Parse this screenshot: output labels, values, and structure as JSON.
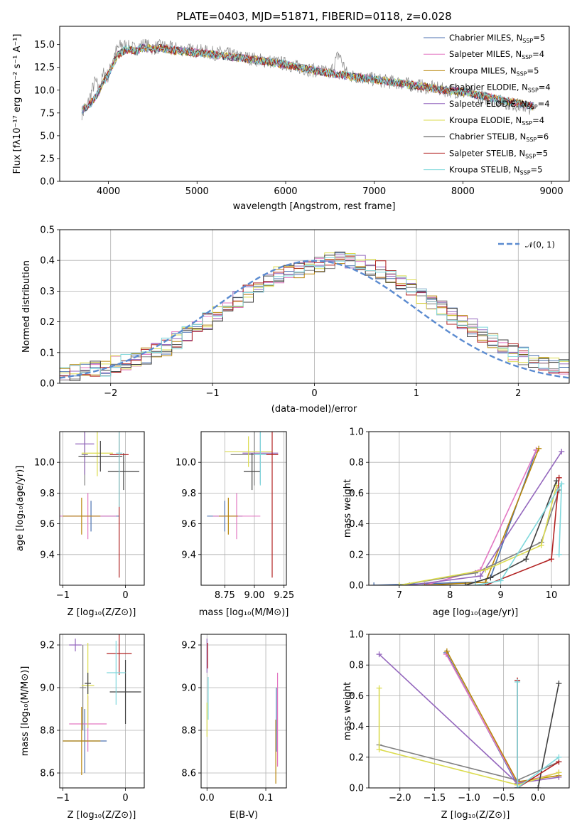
{
  "title": "PLATE=0403, MJD=51871, FIBERID=0118, z=0.028",
  "colors": {
    "Chabrier MILES": "#4c72b0",
    "Salpeter MILES": "#e377c2",
    "Kroupa MILES": "#b8860b",
    "Chabrier ELODIE": "#7f7f7f",
    "Salpeter ELODIE": "#9467bd",
    "Kroupa ELODIE": "#dbdb4d",
    "Chabrier STELIB": "#404040",
    "Salpeter STELIB": "#b22222",
    "Kroupa STELIB": "#7fd8dc"
  },
  "chart_data": [
    {
      "id": "spectrum",
      "type": "line",
      "xlabel": "wavelength [Angstrom, rest frame]",
      "ylabel": "Flux [fλ10⁻¹⁷ erg cm⁻² s⁻¹ A⁻¹]",
      "xlim": [
        3450,
        9200
      ],
      "ylim": [
        0,
        17
      ],
      "xticks": [
        "4000",
        "5000",
        "6000",
        "7000",
        "8000",
        "9000"
      ],
      "yticks": [
        "0.0",
        "2.5",
        "5.0",
        "7.5",
        "10.0",
        "12.5",
        "15.0"
      ],
      "grid": false,
      "legend_position": "top-right",
      "legend": [
        {
          "name": "Chabrier MILES",
          "nssp": "5"
        },
        {
          "name": "Salpeter MILES",
          "nssp": "4"
        },
        {
          "name": "Kroupa MILES",
          "nssp": "5"
        },
        {
          "name": "Chabrier ELODIE",
          "nssp": "4"
        },
        {
          "name": "Salpeter ELODIE",
          "nssp": "4"
        },
        {
          "name": "Kroupa ELODIE",
          "nssp": "4"
        },
        {
          "name": "Chabrier STELIB",
          "nssp": "6"
        },
        {
          "name": "Salpeter STELIB",
          "nssp": "5"
        },
        {
          "name": "Kroupa STELIB",
          "nssp": "5"
        }
      ],
      "observed": {
        "x": [
          3700,
          3750,
          3800,
          3850,
          3900,
          3950,
          4000,
          4050,
          4100,
          4150,
          4200,
          4300,
          4400,
          4500,
          4600,
          4700,
          4800,
          4900,
          5000,
          5100,
          5200,
          5300,
          5400,
          5500,
          5600,
          5700,
          5800,
          5900,
          6000,
          6100,
          6200,
          6300,
          6400,
          6500,
          6600,
          6700,
          6800,
          6900,
          7000,
          7100,
          7200,
          7300,
          7400,
          7500,
          7600,
          7700,
          7800,
          7900,
          8000,
          8100,
          8200,
          8300,
          8400,
          8500,
          8600,
          8700,
          8800
        ],
        "y": [
          7.5,
          8.0,
          9.5,
          11.0,
          10.0,
          12.0,
          11.5,
          13.5,
          14.5,
          15.0,
          14.8,
          14.5,
          15.0,
          14.6,
          14.8,
          14.6,
          14.5,
          14.4,
          14.3,
          14.2,
          14.0,
          14.1,
          13.8,
          13.6,
          13.5,
          13.3,
          13.2,
          13.0,
          12.9,
          12.6,
          12.4,
          12.2,
          12.1,
          11.8,
          14.0,
          11.6,
          11.5,
          11.3,
          11.2,
          11.0,
          10.9,
          10.8,
          10.6,
          10.5,
          10.3,
          10.2,
          10.0,
          9.9,
          9.7,
          9.6,
          9.3,
          9.0,
          8.8,
          8.6,
          8.4,
          8.2,
          8.0
        ]
      },
      "model": {
        "x": [
          3700,
          3800,
          3900,
          4000,
          4100,
          4200,
          4300,
          4400,
          4500,
          4600,
          4700,
          4800,
          4900,
          5000,
          5200,
          5400,
          5600,
          5800,
          6000,
          6200,
          6400,
          6600,
          6800,
          7000,
          7200,
          7400,
          7600,
          7800,
          8000,
          8200,
          8400,
          8600,
          8800
        ],
        "y": [
          7.8,
          8.5,
          10.0,
          11.8,
          13.8,
          14.5,
          14.3,
          14.7,
          14.5,
          14.6,
          14.4,
          14.3,
          14.2,
          14.1,
          13.9,
          13.6,
          13.4,
          13.1,
          12.8,
          12.4,
          12.0,
          11.7,
          11.4,
          11.2,
          10.9,
          10.6,
          10.3,
          10.0,
          9.8,
          9.4,
          9.0,
          8.6,
          8.2
        ]
      }
    },
    {
      "id": "residual-histogram",
      "type": "line",
      "xlabel": "(data-model)/error",
      "ylabel": "Normed distribution",
      "xlim": [
        -2.5,
        2.5
      ],
      "ylim": [
        0,
        0.5
      ],
      "xticks": [
        "−2",
        "−1",
        "0",
        "1",
        "2"
      ],
      "yticks": [
        "0.0",
        "0.1",
        "0.2",
        "0.3",
        "0.4",
        "0.5"
      ],
      "grid": true,
      "legend_position": "top-right",
      "legend": [
        {
          "name": "𝒩(0, 1)"
        }
      ],
      "bin_width": 0.1,
      "bin_start": -2.5,
      "histogram_values": [
        0.03,
        0.035,
        0.04,
        0.045,
        0.05,
        0.06,
        0.07,
        0.08,
        0.09,
        0.11,
        0.12,
        0.14,
        0.16,
        0.18,
        0.2,
        0.22,
        0.25,
        0.27,
        0.29,
        0.31,
        0.33,
        0.35,
        0.36,
        0.37,
        0.38,
        0.39,
        0.4,
        0.41,
        0.4,
        0.39,
        0.38,
        0.37,
        0.35,
        0.33,
        0.31,
        0.29,
        0.27,
        0.25,
        0.22,
        0.2,
        0.18,
        0.16,
        0.14,
        0.12,
        0.1,
        0.09,
        0.08,
        0.07,
        0.06,
        0.05
      ]
    },
    {
      "id": "age-vs-metallicity",
      "type": "scatter",
      "xlabel": "Z [log₁₀(Z/Z⊙)]",
      "ylabel": "age  [log₁₀(age/yr)]",
      "xlim": [
        -1.05,
        0.3
      ],
      "ylim": [
        9.2,
        10.2
      ],
      "xticks": [
        "−1",
        "0"
      ],
      "yticks": [
        "9.4",
        "9.6",
        "9.8",
        "10.0"
      ],
      "grid": true,
      "points": [
        {
          "series": "Chabrier MILES",
          "x": -0.55,
          "y": 9.65,
          "xerr": 0.45,
          "yerr": 0.1
        },
        {
          "series": "Salpeter MILES",
          "x": -0.6,
          "y": 9.65,
          "xerr": 0.45,
          "yerr": 0.15
        },
        {
          "series": "Kroupa MILES",
          "x": -0.7,
          "y": 9.65,
          "xerr": 0.3,
          "yerr": 0.12
        },
        {
          "series": "Chabrier ELODIE",
          "x": -0.65,
          "y": 10.05,
          "xerr": 0.05,
          "yerr": 0.2
        },
        {
          "series": "Salpeter ELODIE",
          "x": -0.65,
          "y": 10.12,
          "xerr": 0.15,
          "yerr": 0.2
        },
        {
          "series": "Kroupa ELODIE",
          "x": -0.45,
          "y": 10.06,
          "xerr": 0.25,
          "yerr": 0.15
        },
        {
          "series": "Chabrier STELIB",
          "x": -0.4,
          "y": 10.04,
          "xerr": 0.35,
          "yerr": 0.1
        },
        {
          "series": "Chabrier STELIB",
          "x": -0.03,
          "y": 9.94,
          "xerr": 0.25,
          "yerr": 0.12
        },
        {
          "series": "Salpeter STELIB",
          "x": -0.1,
          "y": 10.05,
          "xerr": 0.15,
          "yerr": 0.8
        },
        {
          "series": "Kroupa STELIB",
          "x": -0.1,
          "y": 10.06,
          "xerr": 0.05,
          "yerr": 0.35
        }
      ]
    },
    {
      "id": "age-vs-mass",
      "type": "scatter",
      "xlabel": "mass [log₁₀(M/M⊙)]",
      "ylabel": "",
      "xlim": [
        8.55,
        9.27
      ],
      "ylim": [
        9.2,
        10.2
      ],
      "xticks": [
        "8.75",
        "9.00",
        "9.25"
      ],
      "yticks": [
        "9.4",
        "9.6",
        "9.8",
        "10.0"
      ],
      "grid": true,
      "points": [
        {
          "series": "Chabrier MILES",
          "x": 8.75,
          "y": 9.65,
          "xerr": 0.15,
          "yerr": 0.1
        },
        {
          "series": "Salpeter MILES",
          "x": 8.85,
          "y": 9.65,
          "xerr": 0.2,
          "yerr": 0.15
        },
        {
          "series": "Kroupa MILES",
          "x": 8.78,
          "y": 9.65,
          "xerr": 0.08,
          "yerr": 0.12
        },
        {
          "series": "Chabrier ELODIE",
          "x": 9.0,
          "y": 10.05,
          "xerr": 0.2,
          "yerr": 0.2
        },
        {
          "series": "Salpeter ELODIE",
          "x": 9.05,
          "y": 10.06,
          "xerr": 0.15,
          "yerr": 0.2
        },
        {
          "series": "Kroupa ELODIE",
          "x": 8.95,
          "y": 10.07,
          "xerr": 0.2,
          "yerr": 0.1
        },
        {
          "series": "Chabrier STELIB",
          "x": 8.98,
          "y": 9.94,
          "xerr": 0.07,
          "yerr": 0.12
        },
        {
          "series": "Salpeter STELIB",
          "x": 9.15,
          "y": 10.05,
          "xerr": 0.05,
          "yerr": 0.8
        },
        {
          "series": "Kroupa STELIB",
          "x": 9.05,
          "y": 10.05,
          "xerr": 0.05,
          "yerr": 0.2
        }
      ]
    },
    {
      "id": "mass-weight-vs-age",
      "type": "line",
      "xlabel": "age  [log₁₀(age/yr)]",
      "ylabel": "mass weight",
      "xlim": [
        6.4,
        10.35
      ],
      "ylim": [
        0,
        1.0
      ],
      "xticks": [
        "7",
        "8",
        "9",
        "10"
      ],
      "yticks": [
        "0.0",
        "0.2",
        "0.4",
        "0.6",
        "0.8",
        "1.0"
      ],
      "grid": true,
      "series": [
        {
          "name": "Chabrier MILES",
          "x": [
            6.5,
            8.5,
            8.8,
            9.7
          ],
          "y": [
            0.0,
            0.02,
            0.05,
            0.88
          ]
        },
        {
          "name": "Salpeter MILES",
          "x": [
            7.5,
            8.6,
            9.7
          ],
          "y": [
            0.0,
            0.1,
            0.88
          ]
        },
        {
          "name": "Kroupa MILES",
          "x": [
            7.5,
            8.7,
            9.75
          ],
          "y": [
            0.0,
            0.02,
            0.89
          ]
        },
        {
          "name": "Chabrier ELODIE",
          "x": [
            7.0,
            8.5,
            9.8,
            10.15
          ],
          "y": [
            0.0,
            0.08,
            0.28,
            0.62
          ]
        },
        {
          "name": "Salpeter ELODIE",
          "x": [
            7.2,
            8.6,
            10.2
          ],
          "y": [
            0.0,
            0.06,
            0.87
          ]
        },
        {
          "name": "Kroupa ELODIE",
          "x": [
            7.0,
            8.7,
            9.8,
            10.1
          ],
          "y": [
            0.0,
            0.1,
            0.26,
            0.65
          ]
        },
        {
          "name": "Chabrier STELIB",
          "x": [
            8.3,
            8.8,
            9.5,
            10.1
          ],
          "y": [
            0.0,
            0.05,
            0.17,
            0.68
          ]
        },
        {
          "name": "Salpeter STELIB",
          "x": [
            8.7,
            10.0,
            10.15
          ],
          "y": [
            0.0,
            0.17,
            0.7
          ]
        },
        {
          "name": "Kroupa STELIB",
          "x": [
            8.5,
            9.0,
            10.2,
            10.15
          ],
          "y": [
            0.0,
            0.03,
            0.66,
            0.2
          ]
        }
      ]
    },
    {
      "id": "mass-vs-metallicity",
      "type": "scatter",
      "xlabel": "Z [log₁₀(Z/Z⊙)]",
      "ylabel": "mass [log₁₀(M/M⊙)]",
      "xlim": [
        -1.05,
        0.3
      ],
      "ylim": [
        8.53,
        9.25
      ],
      "xticks": [
        "−1",
        "0"
      ],
      "yticks": [
        "8.6",
        "8.8",
        "9.0",
        "9.2"
      ],
      "grid": true,
      "points": [
        {
          "series": "Chabrier MILES",
          "x": -0.65,
          "y": 8.75,
          "xerr": 0.35,
          "yerr": 0.15
        },
        {
          "series": "Salpeter MILES",
          "x": -0.6,
          "y": 8.83,
          "xerr": 0.3,
          "yerr": 0.13
        },
        {
          "series": "Kroupa MILES",
          "x": -0.7,
          "y": 8.75,
          "xerr": 0.3,
          "yerr": 0.16
        },
        {
          "series": "Chabrier ELODIE",
          "x": -0.68,
          "y": 9.0,
          "xerr": 0.05,
          "yerr": 0.2
        },
        {
          "series": "Salpeter ELODIE",
          "x": -0.8,
          "y": 9.2,
          "xerr": 0.1,
          "yerr": 0.03
        },
        {
          "series": "Kroupa ELODIE",
          "x": -0.6,
          "y": 9.01,
          "xerr": 0.1,
          "yerr": 0.2
        },
        {
          "series": "Chabrier STELIB",
          "x": 0.0,
          "y": 8.98,
          "xerr": 0.25,
          "yerr": 0.15
        },
        {
          "series": "Chabrier STELIB",
          "x": -0.6,
          "y": 9.02,
          "xerr": 0.05,
          "yerr": 0.05
        },
        {
          "series": "Salpeter STELIB",
          "x": -0.1,
          "y": 9.16,
          "xerr": 0.2,
          "yerr": 0.1
        },
        {
          "series": "Kroupa STELIB",
          "x": -0.15,
          "y": 9.07,
          "xerr": 0.15,
          "yerr": 0.15
        }
      ]
    },
    {
      "id": "mass-vs-extinction",
      "type": "scatter",
      "xlabel": "E(B-V)",
      "ylabel": "",
      "xlim": [
        -0.01,
        0.135
      ],
      "ylim": [
        8.53,
        9.25
      ],
      "xticks": [
        "0.0",
        "0.1"
      ],
      "yticks": [
        "8.6",
        "8.8",
        "9.0",
        "9.2"
      ],
      "grid": true,
      "points": [
        {
          "series": "Salpeter ELODIE",
          "x": 0.0,
          "y": 9.15,
          "xerr": 0.0,
          "yerr": 0.08
        },
        {
          "series": "Kroupa ELODIE",
          "x": 0.0,
          "y": 8.85,
          "xerr": 0.0,
          "yerr": 0.08
        },
        {
          "series": "Salpeter STELIB",
          "x": 0.001,
          "y": 9.15,
          "xerr": 0.0,
          "yerr": 0.06
        },
        {
          "series": "Kroupa STELIB",
          "x": 0.002,
          "y": 8.95,
          "xerr": 0.0,
          "yerr": 0.1
        },
        {
          "series": "Salpeter MILES",
          "x": 0.12,
          "y": 8.85,
          "xerr": 0.0,
          "yerr": 0.22
        },
        {
          "series": "Kroupa MILES",
          "x": 0.117,
          "y": 8.7,
          "xerr": 0.0,
          "yerr": 0.15
        },
        {
          "series": "Chabrier MILES",
          "x": 0.118,
          "y": 8.85,
          "xerr": 0.0,
          "yerr": 0.15
        }
      ]
    },
    {
      "id": "mass-weight-vs-metallicity",
      "type": "line",
      "xlabel": "Z [log₁₀(Z/Z⊙)]",
      "ylabel": "mass weight",
      "xlim": [
        -2.45,
        0.45
      ],
      "ylim": [
        0,
        1.0
      ],
      "xticks": [
        "−2.0",
        "−1.5",
        "−1.0",
        "−0.5",
        "0.0"
      ],
      "yticks": [
        "0.0",
        "0.2",
        "0.4",
        "0.6",
        "0.8",
        "1.0"
      ],
      "grid": true,
      "series": [
        {
          "name": "Chabrier MILES",
          "x": [
            -1.33,
            -0.3,
            -0.3
          ],
          "y": [
            0.88,
            0.02,
            0.0
          ]
        },
        {
          "name": "Salpeter MILES",
          "x": [
            -1.33,
            -0.3,
            0.3
          ],
          "y": [
            0.87,
            0.03,
            0.1
          ]
        },
        {
          "name": "Kroupa MILES",
          "x": [
            -1.32,
            -0.3,
            0.3
          ],
          "y": [
            0.89,
            0.04,
            0.08
          ]
        },
        {
          "name": "Chabrier ELODIE",
          "x": [
            -2.3,
            -0.3,
            0.3
          ],
          "y": [
            0.28,
            0.05,
            0.17
          ]
        },
        {
          "name": "Salpeter ELODIE",
          "x": [
            -2.3,
            -0.3,
            0.3
          ],
          "y": [
            0.87,
            0.03,
            0.07
          ]
        },
        {
          "name": "Kroupa ELODIE",
          "x": [
            -2.3,
            -2.3,
            -0.3,
            0.3
          ],
          "y": [
            0.65,
            0.25,
            0.02,
            0.1
          ]
        },
        {
          "name": "Chabrier STELIB",
          "x": [
            -0.3,
            0.0,
            0.3
          ],
          "y": [
            0.0,
            0.0,
            0.68
          ]
        },
        {
          "name": "Salpeter STELIB",
          "x": [
            -0.3,
            -0.3,
            0.3
          ],
          "y": [
            0.7,
            0.0,
            0.17
          ]
        },
        {
          "name": "Kroupa STELIB",
          "x": [
            -0.3,
            -0.3,
            0.3
          ],
          "y": [
            0.69,
            0.0,
            0.2
          ]
        }
      ]
    }
  ]
}
